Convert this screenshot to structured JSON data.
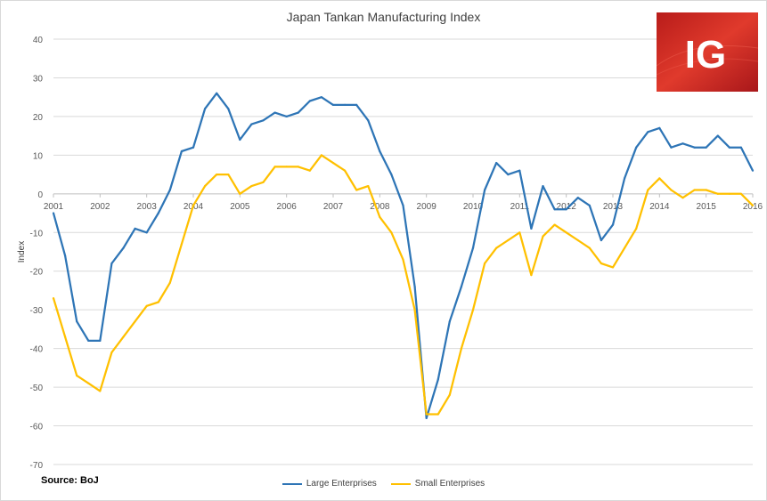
{
  "title": "Japan Tankan Manufacturing Index",
  "source": "Source: BoJ",
  "logo": {
    "text": "IG",
    "bg_color": "#c8201e",
    "text_color": "#ffffff"
  },
  "colors": {
    "large": "#2e75b6",
    "small": "#ffc000",
    "grid": "#d9d9d9",
    "axis_text": "#595959"
  },
  "chart_data": {
    "type": "line",
    "title": "Japan Tankan Manufacturing Index",
    "xlabel": "",
    "ylabel": "Index",
    "ylim": [
      -70,
      40
    ],
    "yticks": [
      40,
      30,
      20,
      10,
      0,
      -10,
      -20,
      -30,
      -40,
      -50,
      -60,
      -70
    ],
    "xlim": [
      2001,
      2016
    ],
    "xticks": [
      "2001",
      "2002",
      "2003",
      "2004",
      "2005",
      "2006",
      "2007",
      "2008",
      "2009",
      "2010",
      "2011",
      "2012",
      "2013",
      "2014",
      "2015",
      "2016"
    ],
    "grid": "horizontal",
    "legend": "bottom",
    "x": [
      2001.0,
      2001.25,
      2001.5,
      2001.75,
      2002.0,
      2002.25,
      2002.5,
      2002.75,
      2003.0,
      2003.25,
      2003.5,
      2003.75,
      2004.0,
      2004.25,
      2004.5,
      2004.75,
      2005.0,
      2005.25,
      2005.5,
      2005.75,
      2006.0,
      2006.25,
      2006.5,
      2006.75,
      2007.0,
      2007.25,
      2007.5,
      2007.75,
      2008.0,
      2008.25,
      2008.5,
      2008.75,
      2009.0,
      2009.25,
      2009.5,
      2009.75,
      2010.0,
      2010.25,
      2010.5,
      2010.75,
      2011.0,
      2011.25,
      2011.5,
      2011.75,
      2012.0,
      2012.25,
      2012.5,
      2012.75,
      2013.0,
      2013.25,
      2013.5,
      2013.75,
      2014.0,
      2014.25,
      2014.5,
      2014.75,
      2015.0,
      2015.25,
      2015.5,
      2015.75,
      2016.0
    ],
    "series": [
      {
        "name": "Large Enterprises",
        "values": [
          -5,
          -16,
          -33,
          -38,
          -38,
          -18,
          -14,
          -9,
          -10,
          -5,
          1,
          11,
          12,
          22,
          26,
          22,
          14,
          18,
          19,
          21,
          20,
          21,
          24,
          25,
          23,
          23,
          23,
          19,
          11,
          5,
          -3,
          -24,
          -58,
          -48,
          -33,
          -24,
          -14,
          1,
          8,
          5,
          6,
          -9,
          2,
          -4,
          -4,
          -1,
          -3,
          -12,
          -8,
          4,
          12,
          16,
          17,
          12,
          13,
          12,
          12,
          15,
          12,
          12,
          6
        ]
      },
      {
        "name": "Small Enterprises",
        "values": [
          -27,
          -37,
          -47,
          -49,
          -51,
          -41,
          -37,
          -33,
          -29,
          -28,
          -23,
          -13,
          -3,
          2,
          5,
          5,
          0,
          2,
          3,
          7,
          7,
          7,
          6,
          10,
          8,
          6,
          1,
          2,
          -6,
          -10,
          -17,
          -30,
          -57,
          -57,
          -52,
          -40,
          -30,
          -18,
          -14,
          -12,
          -10,
          -21,
          -11,
          -8,
          -10,
          -12,
          -14,
          -18,
          -19,
          -14,
          -9,
          1,
          4,
          1,
          -1,
          1,
          1,
          0,
          0,
          0,
          -3
        ]
      }
    ]
  }
}
